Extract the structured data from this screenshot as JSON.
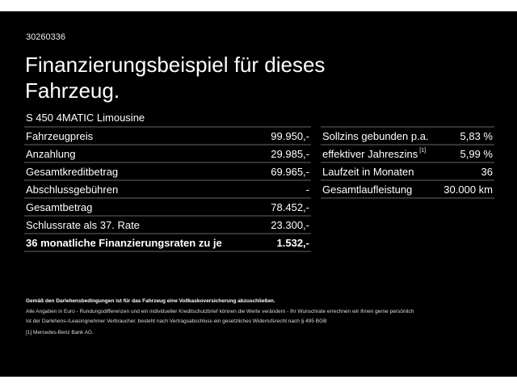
{
  "id": "30260336",
  "title": "Finanzierungsbeispiel für dieses Fahrzeug.",
  "model": "S 450 4MATIC Limousine",
  "left_rows": [
    {
      "label": "Fahrzeugpreis",
      "value": "99.950,-"
    },
    {
      "label": "Anzahlung",
      "value": "29.985,-"
    },
    {
      "label": "Gesamtkreditbetrag",
      "value": "69.965,-"
    },
    {
      "label": "Abschlussgebühren",
      "value": "-"
    },
    {
      "label": "Gesamtbetrag",
      "value": "78.452,-"
    },
    {
      "label": "Schlussrate als 37. Rate",
      "value": "23.300,-"
    },
    {
      "label": "36 monatliche Finanzierungsraten zu je",
      "value": "1.532,-"
    }
  ],
  "right_rows": [
    {
      "label": "Sollzins gebunden p.a.",
      "sup": "",
      "value": "5,83 %"
    },
    {
      "label": "effektiver Jahreszins",
      "sup": "[1]",
      "value": "5,99 %"
    },
    {
      "label": "Laufzeit in Monaten",
      "sup": "",
      "value": "36"
    },
    {
      "label": "Gesamtlaufleistung",
      "sup": "",
      "value": "30.000 km"
    }
  ],
  "footnotes": {
    "bold": "Gemäß den Darlehensbedingungen ist für das Fahrzeug eine Vollkaskoversicherung abzuschließen.",
    "line1": "Alle Angaben in Euro - Rundungsdifferenzen und ein individueller Kreditschutzbrief können die Werte verändern - Ihr Wunschrate errechnen wir Ihnen gerne persönlich",
    "line2": "Ist der Darlehens-/Leasingnehmer Verbraucher, besteht nach Vertragsabschluss ein gesetzliches Widerrufsrecht nach § 495 BGB",
    "ref": "[1]  Mercedes-Benz Bank AG."
  }
}
